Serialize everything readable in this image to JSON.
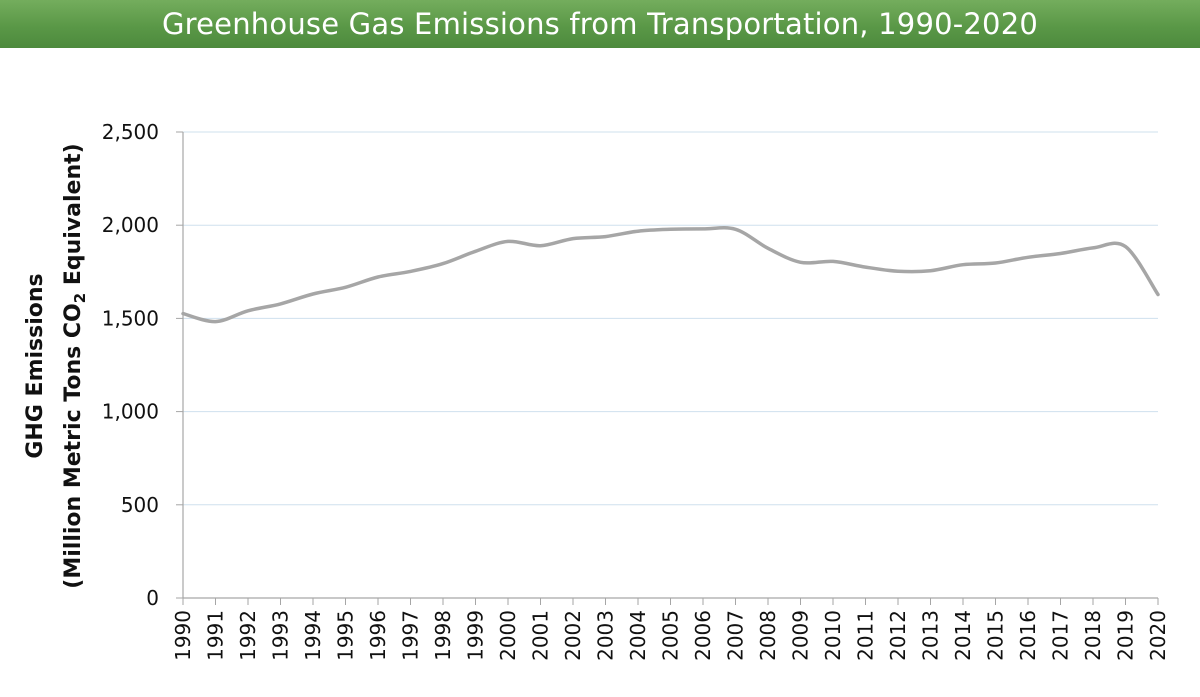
{
  "title": "Greenhouse Gas Emissions from Transportation, 1990-2020",
  "colors": {
    "title_bar": "#5a9847",
    "line": "#a6a6a6",
    "gridline": "#cfe0ee",
    "axis": "#a6a6a6"
  },
  "chart_data": {
    "type": "line",
    "title": "Greenhouse Gas Emissions from Transportation, 1990-2020",
    "ylabel_line1": "GHG Emissions",
    "ylabel_line2_prefix": "(Million Metric Tons CO",
    "ylabel_line2_sub": "2",
    "ylabel_line2_suffix": " Equivalent)",
    "xlabel": "",
    "ylim": [
      0,
      2500
    ],
    "yticks": [
      0,
      500,
      1000,
      1500,
      2000,
      2500
    ],
    "ytick_labels": [
      "0",
      "500",
      "1,000",
      "1,500",
      "2,000",
      "2,500"
    ],
    "grid": true,
    "x": [
      "1990",
      "1991",
      "1992",
      "1993",
      "1994",
      "1995",
      "1996",
      "1997",
      "1998",
      "1999",
      "2000",
      "2001",
      "2002",
      "2003",
      "2004",
      "2005",
      "2006",
      "2007",
      "2008",
      "2009",
      "2010",
      "2011",
      "2012",
      "2013",
      "2014",
      "2015",
      "2016",
      "2017",
      "2018",
      "2019",
      "2020"
    ],
    "series": [
      {
        "values": [
          1526,
          1483,
          1541,
          1578,
          1631,
          1667,
          1722,
          1752,
          1794,
          1860,
          1913,
          1890,
          1928,
          1939,
          1968,
          1978,
          1980,
          1978,
          1876,
          1801,
          1806,
          1775,
          1753,
          1756,
          1788,
          1797,
          1828,
          1848,
          1878,
          1885,
          1628
        ]
      }
    ]
  }
}
